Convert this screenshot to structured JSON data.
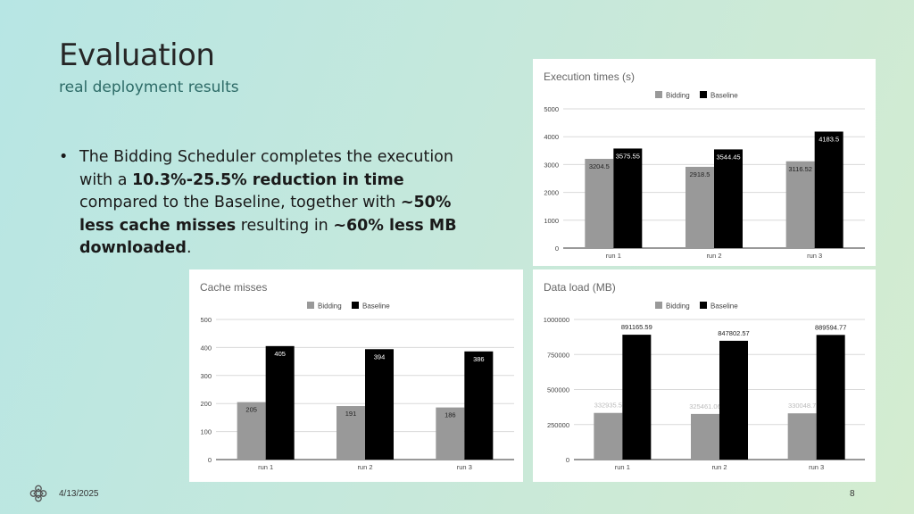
{
  "slide": {
    "title": "Evaluation",
    "subtitle": "real deployment results",
    "bullet": {
      "t1": "The Bidding Scheduler completes the execution with a ",
      "b1": "10.3%-25.5% reduction in time",
      "t2": " compared to the Baseline, together with ",
      "b2": "~50% less cache misses",
      "t3": " resulting in ",
      "b3": "~60% less MB downloaded",
      "t4": "."
    },
    "date": "4/13/2025",
    "page_number": "8",
    "logo_icon": "celtic-knot-icon"
  },
  "colors": {
    "bidding": "#999999",
    "baseline": "#000000"
  },
  "chart_data": [
    {
      "type": "bar",
      "title": "Execution times (s)",
      "categories": [
        "run 1",
        "run 2",
        "run 3"
      ],
      "series": [
        {
          "name": "Bidding",
          "values": [
            3204.5,
            2918.5,
            3116.52
          ],
          "labels": [
            "3204.5",
            "2918.5",
            "3116.52"
          ]
        },
        {
          "name": "Baseline",
          "values": [
            3575.55,
            3544.45,
            4183.5
          ],
          "labels": [
            "3575.55",
            "3544.45",
            "4183.5"
          ]
        }
      ],
      "ylim": [
        0,
        5000
      ],
      "yticks": [
        0,
        1000,
        2000,
        3000,
        4000,
        5000
      ],
      "ytick_labels": [
        "0",
        "1000",
        "2000",
        "3000",
        "4000",
        "5000"
      ],
      "legend_position": "top-center",
      "grid": true,
      "label_position": "inside"
    },
    {
      "type": "bar",
      "title": "Cache misses",
      "categories": [
        "run 1",
        "run 2",
        "run 3"
      ],
      "series": [
        {
          "name": "Bidding",
          "values": [
            205,
            191,
            186
          ],
          "labels": [
            "205",
            "191",
            "186"
          ]
        },
        {
          "name": "Baseline",
          "values": [
            405,
            394,
            386
          ],
          "labels": [
            "405",
            "394",
            "386"
          ]
        }
      ],
      "ylim": [
        0,
        500
      ],
      "yticks": [
        0,
        100,
        200,
        300,
        400,
        500
      ],
      "ytick_labels": [
        "0",
        "100",
        "200",
        "300",
        "400",
        "500"
      ],
      "legend_position": "top-center",
      "grid": true,
      "label_position": "inside"
    },
    {
      "type": "bar",
      "title": "Data load (MB)",
      "categories": [
        "run 1",
        "run 2",
        "run 3"
      ],
      "series": [
        {
          "name": "Bidding",
          "values": [
            332935.5,
            325461.06,
            330048.7
          ],
          "labels": [
            "332935.5",
            "325461.06",
            "330048.7"
          ]
        },
        {
          "name": "Baseline",
          "values": [
            891165.59,
            847802.57,
            889594.77
          ],
          "labels": [
            "891165.59",
            "847802.57",
            "889594.77"
          ]
        }
      ],
      "ylim": [
        0,
        1000000
      ],
      "yticks": [
        0,
        250000,
        500000,
        750000,
        1000000
      ],
      "ytick_labels": [
        "0",
        "250000",
        "500000",
        "750000",
        "1000000"
      ],
      "legend_position": "top-center",
      "grid": true,
      "label_position": "above"
    }
  ]
}
